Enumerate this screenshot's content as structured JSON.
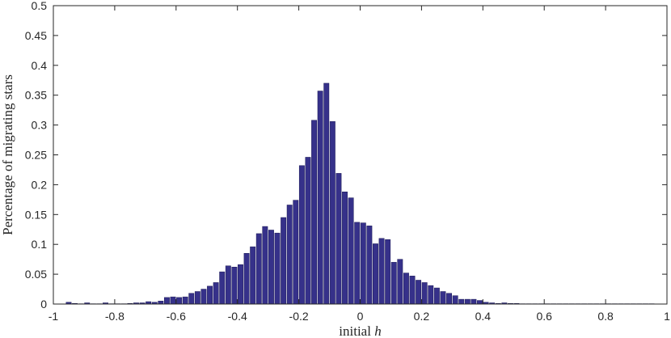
{
  "chart_data": {
    "type": "bar",
    "xlabel": "initial h",
    "xlabel_text": "initial ",
    "xlabel_var": "h",
    "ylabel": "Percentage of migrating stars",
    "xlim": [
      -1,
      1
    ],
    "ylim": [
      0,
      0.5
    ],
    "xticks": [
      -1,
      -0.8,
      -0.6,
      -0.4,
      -0.2,
      0,
      0.2,
      0.4,
      0.6,
      0.8,
      1
    ],
    "xtick_labels": [
      "-1",
      "-0.8",
      "-0.6",
      "-0.4",
      "-0.2",
      "0",
      "0.2",
      "0.4",
      "0.6",
      "0.8",
      "1"
    ],
    "yticks": [
      0,
      0.05,
      0.1,
      0.15,
      0.2,
      0.25,
      0.3,
      0.35,
      0.4,
      0.45,
      0.5
    ],
    "ytick_labels": [
      "0",
      "0.05",
      "0.1",
      "0.15",
      "0.2",
      "0.25",
      "0.3",
      "0.35",
      "0.4",
      "0.45",
      "0.5"
    ],
    "bin_width": 0.02,
    "bar_color": "#36318a",
    "x": [
      -0.95,
      -0.93,
      -0.91,
      -0.89,
      -0.87,
      -0.85,
      -0.83,
      -0.81,
      -0.79,
      -0.77,
      -0.75,
      -0.73,
      -0.71,
      -0.69,
      -0.67,
      -0.65,
      -0.63,
      -0.61,
      -0.59,
      -0.57,
      -0.55,
      -0.53,
      -0.51,
      -0.49,
      -0.47,
      -0.45,
      -0.43,
      -0.41,
      -0.39,
      -0.37,
      -0.35,
      -0.33,
      -0.31,
      -0.29,
      -0.27,
      -0.25,
      -0.23,
      -0.21,
      -0.19,
      -0.17,
      -0.15,
      -0.13,
      -0.11,
      -0.09,
      -0.07,
      -0.05,
      -0.03,
      -0.01,
      0.01,
      0.03,
      0.05,
      0.07,
      0.09,
      0.11,
      0.13,
      0.15,
      0.17,
      0.19,
      0.21,
      0.23,
      0.25,
      0.27,
      0.29,
      0.31,
      0.33,
      0.35,
      0.37,
      0.39,
      0.41,
      0.43,
      0.45,
      0.47,
      0.49,
      0.51,
      0.53,
      0.55,
      0.57,
      0.59,
      0.61,
      0.63,
      0.65,
      0.67,
      0.69,
      0.71,
      0.73,
      0.75,
      0.77,
      0.79,
      0.81,
      0.83,
      0.85,
      0.87,
      0.89,
      0.91,
      0.93,
      0.95
    ],
    "values": [
      0.003,
      0.001,
      0.0005,
      0.002,
      0.0005,
      0.0005,
      0.002,
      0.0005,
      0.0005,
      0.0005,
      0.001,
      0.002,
      0.002,
      0.004,
      0.003,
      0.005,
      0.011,
      0.012,
      0.011,
      0.012,
      0.018,
      0.021,
      0.025,
      0.03,
      0.036,
      0.054,
      0.064,
      0.062,
      0.066,
      0.085,
      0.096,
      0.118,
      0.13,
      0.124,
      0.119,
      0.145,
      0.166,
      0.174,
      0.232,
      0.246,
      0.308,
      0.357,
      0.37,
      0.306,
      0.219,
      0.188,
      0.178,
      0.137,
      0.136,
      0.131,
      0.101,
      0.11,
      0.108,
      0.07,
      0.075,
      0.052,
      0.047,
      0.04,
      0.036,
      0.031,
      0.027,
      0.021,
      0.018,
      0.014,
      0.008,
      0.008,
      0.008,
      0.006,
      0.003,
      0.002,
      0.001,
      0.002,
      0.001,
      0.001,
      0.0005,
      0.0005,
      0.0005,
      0.0005,
      0.0005,
      0.0005,
      0.0005,
      0.0005,
      0.0005,
      0.0005,
      0.0005,
      0.0005,
      0.0005,
      0.0005,
      0.0005,
      0.0005,
      0.0005,
      0.0005,
      0.0005,
      0.0005,
      0.0005,
      0.0005
    ]
  }
}
